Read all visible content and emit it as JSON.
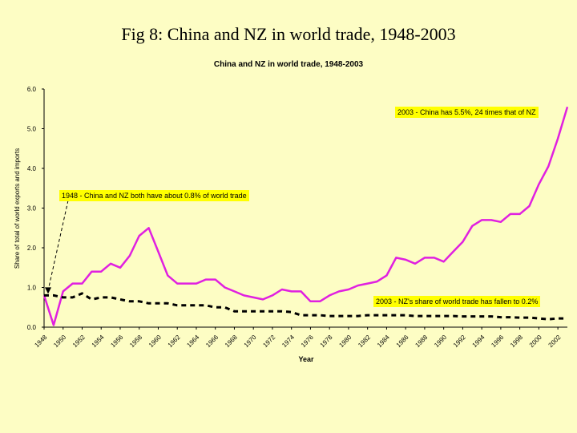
{
  "slide_title": "Fig 8: China and NZ in world trade, 1948-2003",
  "chart_data": {
    "type": "line",
    "title": "China and NZ in world trade, 1948-2003",
    "xlabel": "Year",
    "ylabel": "Share of total of world exports and imports",
    "xlim": [
      1948,
      2003
    ],
    "ylim": [
      0,
      6
    ],
    "y_ticks": [
      "0.0",
      "1.0",
      "2.0",
      "3.0",
      "4.0",
      "5.0",
      "6.0"
    ],
    "x_ticks": [
      "1948",
      "1950",
      "1952",
      "1954",
      "1956",
      "1958",
      "1960",
      "1962",
      "1964",
      "1966",
      "1968",
      "1970",
      "1972",
      "1974",
      "1976",
      "1978",
      "1980",
      "1982",
      "1984",
      "1986",
      "1988",
      "1990",
      "1992",
      "1994",
      "1996",
      "1998",
      "2000",
      "2002"
    ],
    "grid": false,
    "legend": "none",
    "series": [
      {
        "color": "#e020e0",
        "style": "solid",
        "x": [
          1948,
          1949,
          1950,
          1951,
          1952,
          1953,
          1954,
          1955,
          1956,
          1957,
          1958,
          1959,
          1960,
          1961,
          1962,
          1963,
          1964,
          1965,
          1966,
          1967,
          1968,
          1969,
          1970,
          1971,
          1972,
          1973,
          1974,
          1975,
          1976,
          1977,
          1978,
          1979,
          1980,
          1981,
          1982,
          1983,
          1984,
          1985,
          1986,
          1987,
          1988,
          1989,
          1990,
          1991,
          1992,
          1993,
          1994,
          1995,
          1996,
          1997,
          1998,
          1999,
          2000,
          2001,
          2002,
          2003
        ],
        "values": [
          0.8,
          0.05,
          0.9,
          1.1,
          1.1,
          1.4,
          1.4,
          1.6,
          1.5,
          1.8,
          2.3,
          2.5,
          1.9,
          1.3,
          1.1,
          1.1,
          1.1,
          1.2,
          1.2,
          1.0,
          0.9,
          0.8,
          0.75,
          0.7,
          0.8,
          0.95,
          0.9,
          0.9,
          0.65,
          0.65,
          0.8,
          0.9,
          0.95,
          1.05,
          1.1,
          1.15,
          1.3,
          1.75,
          1.7,
          1.6,
          1.75,
          1.75,
          1.65,
          1.9,
          2.15,
          2.55,
          2.7,
          2.7,
          2.65,
          2.85,
          2.85,
          3.05,
          3.6,
          4.05,
          4.75,
          5.55
        ]
      },
      {
        "color": "#000000",
        "style": "dashed",
        "x": [
          1948,
          1949,
          1950,
          1951,
          1952,
          1953,
          1954,
          1955,
          1956,
          1957,
          1958,
          1959,
          1960,
          1961,
          1962,
          1963,
          1964,
          1965,
          1966,
          1967,
          1968,
          1969,
          1970,
          1971,
          1972,
          1973,
          1974,
          1975,
          1976,
          1977,
          1978,
          1979,
          1980,
          1981,
          1982,
          1983,
          1984,
          1985,
          1986,
          1987,
          1988,
          1989,
          1990,
          1991,
          1992,
          1993,
          1994,
          1995,
          1996,
          1997,
          1998,
          1999,
          2000,
          2001,
          2002,
          2003
        ],
        "values": [
          0.8,
          0.8,
          0.75,
          0.75,
          0.85,
          0.7,
          0.75,
          0.75,
          0.7,
          0.65,
          0.65,
          0.6,
          0.6,
          0.6,
          0.55,
          0.55,
          0.55,
          0.55,
          0.5,
          0.5,
          0.4,
          0.4,
          0.4,
          0.4,
          0.4,
          0.4,
          0.38,
          0.3,
          0.3,
          0.3,
          0.28,
          0.28,
          0.28,
          0.28,
          0.3,
          0.3,
          0.3,
          0.3,
          0.3,
          0.28,
          0.28,
          0.28,
          0.28,
          0.28,
          0.27,
          0.27,
          0.27,
          0.27,
          0.25,
          0.25,
          0.24,
          0.24,
          0.22,
          0.2,
          0.22,
          0.22
        ]
      }
    ],
    "annotations": [
      {
        "text": "2003 - China has 5.5%, 24 times that of NZ"
      },
      {
        "text": "1948 - China and NZ both have about 0.8% of world trade"
      },
      {
        "text": "2003 - NZ's share of world trade has fallen to 0.2%"
      }
    ]
  }
}
